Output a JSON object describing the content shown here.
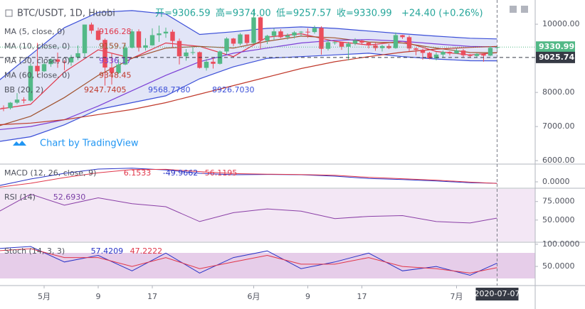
{
  "chart_data": [
    {
      "type": "candlestick",
      "title": "BTC/USDT, 1D, Huobi",
      "ohlc_labels": [
        "开=9306.59",
        "高=9374.00",
        "低=9257.57",
        "收=9330.99"
      ],
      "change_label": "+24.40 (+0.26%)",
      "credit": "Chart by TradingView",
      "crosshair_label": "2020-07-07",
      "up_color": "#53b987",
      "down_color": "#eb4d5c",
      "categories": [
        "2020-04-24",
        "2020-04-25",
        "2020-04-26",
        "2020-04-27",
        "2020-04-28",
        "2020-04-29",
        "2020-04-30",
        "2020-05-01",
        "2020-05-02",
        "2020-05-03",
        "2020-05-04",
        "2020-05-05",
        "2020-05-06",
        "2020-05-07",
        "2020-05-08",
        "2020-05-09",
        "2020-05-10",
        "2020-05-11",
        "2020-05-12",
        "2020-05-13",
        "2020-05-14",
        "2020-05-15",
        "2020-05-16",
        "2020-05-17",
        "2020-05-18",
        "2020-05-19",
        "2020-05-20",
        "2020-05-21",
        "2020-05-22",
        "2020-05-23",
        "2020-05-24",
        "2020-05-25",
        "2020-05-26",
        "2020-05-27",
        "2020-05-28",
        "2020-05-29",
        "2020-05-30",
        "2020-05-31",
        "2020-06-01",
        "2020-06-02",
        "2020-06-03",
        "2020-06-04",
        "2020-06-05",
        "2020-06-06",
        "2020-06-07",
        "2020-06-08",
        "2020-06-09",
        "2020-06-10",
        "2020-06-11",
        "2020-06-12",
        "2020-06-13",
        "2020-06-14",
        "2020-06-15",
        "2020-06-16",
        "2020-06-17",
        "2020-06-18",
        "2020-06-19",
        "2020-06-20",
        "2020-06-21",
        "2020-06-22",
        "2020-06-23",
        "2020-06-24",
        "2020-06-25",
        "2020-06-26",
        "2020-06-27",
        "2020-06-28",
        "2020-06-29",
        "2020-06-30",
        "2020-07-01",
        "2020-07-02",
        "2020-07-03",
        "2020-07-04",
        "2020-07-05",
        "2020-07-06",
        "2020-07-07"
      ],
      "open": [
        7480,
        7550,
        7540,
        7700,
        7790,
        7760,
        8780,
        8620,
        8830,
        8970,
        8900,
        8880,
        9030,
        9150,
        9990,
        9810,
        9540,
        8730,
        8570,
        8820,
        9310,
        9790,
        9310,
        9380,
        9680,
        9730,
        9780,
        9510,
        9060,
        9170,
        9180,
        8720,
        8900,
        8840,
        9200,
        9580,
        9430,
        9700,
        9450,
        10200,
        9520,
        9660,
        9790,
        9620,
        9670,
        9760,
        9780,
        9770,
        9890,
        9280,
        9470,
        9470,
        9340,
        9430,
        9520,
        9460,
        9380,
        9300,
        9360,
        9300,
        9680,
        9620,
        9290,
        9250,
        9160,
        9000,
        9110,
        9190,
        9140,
        9230,
        9090,
        9070,
        9130,
        9080,
        9306.59
      ],
      "high": [
        7620,
        7620,
        7720,
        7980,
        7860,
        8850,
        9450,
        8960,
        9000,
        9170,
        8950,
        9100,
        9380,
        9990,
        10050,
        9900,
        9580,
        9160,
        8980,
        9400,
        9850,
        9850,
        9590,
        9880,
        9960,
        9900,
        9840,
        9580,
        9270,
        9320,
        9200,
        8980,
        9020,
        9230,
        9620,
        9600,
        9740,
        9700,
        10430,
        10230,
        9690,
        9880,
        9850,
        9730,
        9800,
        9800,
        9880,
        9960,
        9940,
        9550,
        9500,
        9490,
        9480,
        9590,
        9540,
        9470,
        9450,
        9400,
        9420,
        9760,
        9690,
        9670,
        9320,
        9280,
        9190,
        9180,
        9230,
        9210,
        9290,
        9270,
        9130,
        9150,
        9130,
        9360,
        9374
      ],
      "low": [
        7400,
        7450,
        7500,
        7660,
        7680,
        7730,
        8450,
        8600,
        8750,
        8720,
        8650,
        8780,
        8950,
        9050,
        9720,
        9520,
        8200,
        8230,
        8540,
        8800,
        9290,
        9200,
        9230,
        9370,
        9480,
        9600,
        9300,
        8820,
        8930,
        9100,
        8700,
        8640,
        8700,
        8820,
        9120,
        9360,
        9380,
        9380,
        9420,
        9270,
        9420,
        9530,
        9590,
        9550,
        9580,
        9640,
        9600,
        9720,
        9110,
        9230,
        9400,
        9250,
        8940,
        9380,
        9390,
        9290,
        9220,
        9200,
        9270,
        9280,
        9570,
        9210,
        9090,
        8960,
        8970,
        8940,
        9020,
        9080,
        9130,
        9040,
        9040,
        9040,
        8900,
        9060,
        9257.57
      ],
      "close": [
        7550,
        7540,
        7700,
        7790,
        7760,
        8780,
        8620,
        8830,
        8970,
        8900,
        8880,
        9030,
        9150,
        9990,
        9810,
        9540,
        8730,
        8570,
        8820,
        9310,
        9790,
        9310,
        9380,
        9680,
        9730,
        9780,
        9510,
        9060,
        9170,
        9180,
        8720,
        8900,
        8840,
        9200,
        9580,
        9430,
        9700,
        9450,
        10200,
        9520,
        9660,
        9790,
        9620,
        9670,
        9760,
        9780,
        9770,
        9890,
        9280,
        9470,
        9470,
        9340,
        9430,
        9520,
        9460,
        9380,
        9300,
        9360,
        9300,
        9680,
        9620,
        9290,
        9250,
        9160,
        9000,
        9110,
        9190,
        9140,
        9230,
        9090,
        9070,
        9130,
        9080,
        9306.59,
        9330.99
      ],
      "ylim": [
        5920,
        10710
      ],
      "yticks": [
        {
          "value": 10000,
          "label": "10000.00"
        },
        {
          "value": 8000,
          "label": "8000.00"
        },
        {
          "value": 7000,
          "label": "7000.00"
        },
        {
          "value": 6000,
          "label": "6000.00"
        }
      ],
      "xticks": [
        {
          "value": "2020-05-01",
          "label": "5月"
        },
        {
          "value": "2020-05-09",
          "label": "9"
        },
        {
          "value": "2020-05-17",
          "label": "17"
        },
        {
          "value": "2020-06-01",
          "label": "6月"
        },
        {
          "value": "2020-06-09",
          "label": "9"
        },
        {
          "value": "2020-06-17",
          "label": "17"
        },
        {
          "value": "2020-07-01",
          "label": "7月"
        }
      ],
      "price_labels": [
        {
          "value": 9330.99,
          "label": "9330.99",
          "color": "#53b987"
        },
        {
          "value": 9025.74,
          "label": "9025.74",
          "color": "#363a45"
        }
      ],
      "x": [
        "2020-04-24",
        "2020-04-29",
        "2020-05-04",
        "2020-05-09",
        "2020-05-14",
        "2020-05-19",
        "2020-05-24",
        "2020-05-29",
        "2020-06-03",
        "2020-06-08",
        "2020-06-13",
        "2020-06-18",
        "2020-06-23",
        "2020-06-28",
        "2020-07-03",
        "2020-07-07"
      ],
      "bands": {
        "name": "BB (20, 2)",
        "labels": [
          "9247.7405",
          "9568.7780",
          "8926.7030"
        ],
        "color": "#3b4fd8",
        "fill": "#dfe2f6",
        "upper": [
          8300,
          9100,
          9900,
          10350,
          10400,
          10300,
          9700,
          9780,
          9880,
          9920,
          9880,
          9800,
          9720,
          9650,
          9590,
          9568.778
        ],
        "lower": [
          6550,
          6700,
          7050,
          7500,
          7700,
          7900,
          8400,
          8750,
          9000,
          9050,
          9100,
          9150,
          9050,
          8980,
          8930,
          8926.703
        ]
      },
      "series": [
        {
          "name": "MA (5, close, 0)",
          "value_label": "9166.28",
          "color": "#e0364a",
          "values": [
            7500,
            7650,
            8600,
            9250,
            9000,
            9450,
            9350,
            9050,
            9620,
            9720,
            9500,
            9390,
            9500,
            9200,
            9100,
            9166.28
          ]
        },
        {
          "name": "MA (10, close, 0)",
          "value_label": "9159.7",
          "color": "#a0522d",
          "values": [
            7000,
            7300,
            7850,
            8500,
            9000,
            9300,
            9350,
            9300,
            9500,
            9650,
            9600,
            9480,
            9450,
            9300,
            9170,
            9159.7
          ]
        },
        {
          "name": "MA (30, close, 0)",
          "value_label": "9336.17",
          "color": "#7b3fd6",
          "values": [
            6900,
            7000,
            7200,
            7600,
            8050,
            8500,
            8900,
            9150,
            9300,
            9450,
            9530,
            9550,
            9500,
            9420,
            9350,
            9336.17
          ]
        },
        {
          "name": "MA (60, close, 0)",
          "value_label": "9348.45",
          "color": "#c0392b",
          "values": [
            7050,
            7100,
            7200,
            7350,
            7500,
            7700,
            7950,
            8200,
            8450,
            8700,
            8900,
            9050,
            9180,
            9270,
            9320,
            9348.45
          ]
        }
      ]
    },
    {
      "type": "line",
      "title": "MACD (12, 26, close, 9)",
      "value_labels": [
        {
          "label": "6.1533",
          "color": "#e0364a"
        },
        {
          "label": "-49.9662",
          "color": "#2a34c7"
        },
        {
          "label": "-56.1195",
          "color": "#e0364a"
        }
      ],
      "x": [
        "2020-04-24",
        "2020-04-29",
        "2020-05-04",
        "2020-05-09",
        "2020-05-14",
        "2020-05-19",
        "2020-05-24",
        "2020-05-29",
        "2020-06-03",
        "2020-06-08",
        "2020-06-13",
        "2020-06-18",
        "2020-06-23",
        "2020-06-28",
        "2020-07-03",
        "2020-07-07"
      ],
      "ylim": [
        -200,
        600
      ],
      "yticks": [
        {
          "value": 0,
          "label": "0.0000"
        }
      ],
      "series": [
        {
          "color": "#2a34c7",
          "values": [
            -150,
            100,
            300,
            450,
            480,
            420,
            300,
            250,
            260,
            250,
            200,
            120,
            80,
            30,
            -30,
            -49.9662
          ]
        },
        {
          "color": "#e0364a",
          "values": [
            -200,
            -50,
            150,
            320,
            430,
            440,
            360,
            290,
            270,
            255,
            230,
            160,
            110,
            60,
            -10,
            -56.1195
          ]
        }
      ]
    },
    {
      "type": "line",
      "title": "RSI (14)",
      "value_labels": [
        {
          "label": "52.6930",
          "color": "#7b3fa6"
        }
      ],
      "x": [
        "2020-04-24",
        "2020-04-29",
        "2020-05-04",
        "2020-05-09",
        "2020-05-14",
        "2020-05-19",
        "2020-05-24",
        "2020-05-29",
        "2020-06-03",
        "2020-06-08",
        "2020-06-13",
        "2020-06-18",
        "2020-06-23",
        "2020-06-28",
        "2020-07-03",
        "2020-07-07"
      ],
      "ylim": [
        21,
        92
      ],
      "yticks": [
        {
          "value": 75,
          "label": "75.0000"
        },
        {
          "value": 50,
          "label": "50.0000"
        }
      ],
      "series": [
        {
          "color": "#8a3fa6",
          "values": [
            60,
            85,
            70,
            80,
            72,
            68,
            48,
            60,
            65,
            62,
            52,
            55,
            56,
            48,
            46,
            52.693
          ]
        }
      ]
    },
    {
      "type": "line",
      "title": "Stoch (14, 3, 3)",
      "value_labels": [
        {
          "label": "57.4209",
          "color": "#2a34c7"
        },
        {
          "label": "47.2222",
          "color": "#e0364a"
        }
      ],
      "x": [
        "2020-04-24",
        "2020-04-29",
        "2020-05-04",
        "2020-05-09",
        "2020-05-14",
        "2020-05-19",
        "2020-05-24",
        "2020-05-29",
        "2020-06-03",
        "2020-06-08",
        "2020-06-13",
        "2020-06-18",
        "2020-06-23",
        "2020-06-28",
        "2020-07-03",
        "2020-07-07"
      ],
      "ylim": [
        10,
        103
      ],
      "yticks": [
        {
          "value": 100,
          "label": "100.0000"
        },
        {
          "value": 50,
          "label": "50.0000"
        }
      ],
      "series": [
        {
          "color": "#2a34c7",
          "values": [
            90,
            95,
            60,
            75,
            40,
            80,
            35,
            70,
            85,
            45,
            60,
            80,
            40,
            50,
            30,
            57.4209
          ]
        },
        {
          "color": "#e0364a",
          "values": [
            85,
            90,
            70,
            70,
            50,
            70,
            45,
            60,
            75,
            55,
            55,
            70,
            50,
            45,
            35,
            47.2222
          ]
        }
      ]
    }
  ]
}
